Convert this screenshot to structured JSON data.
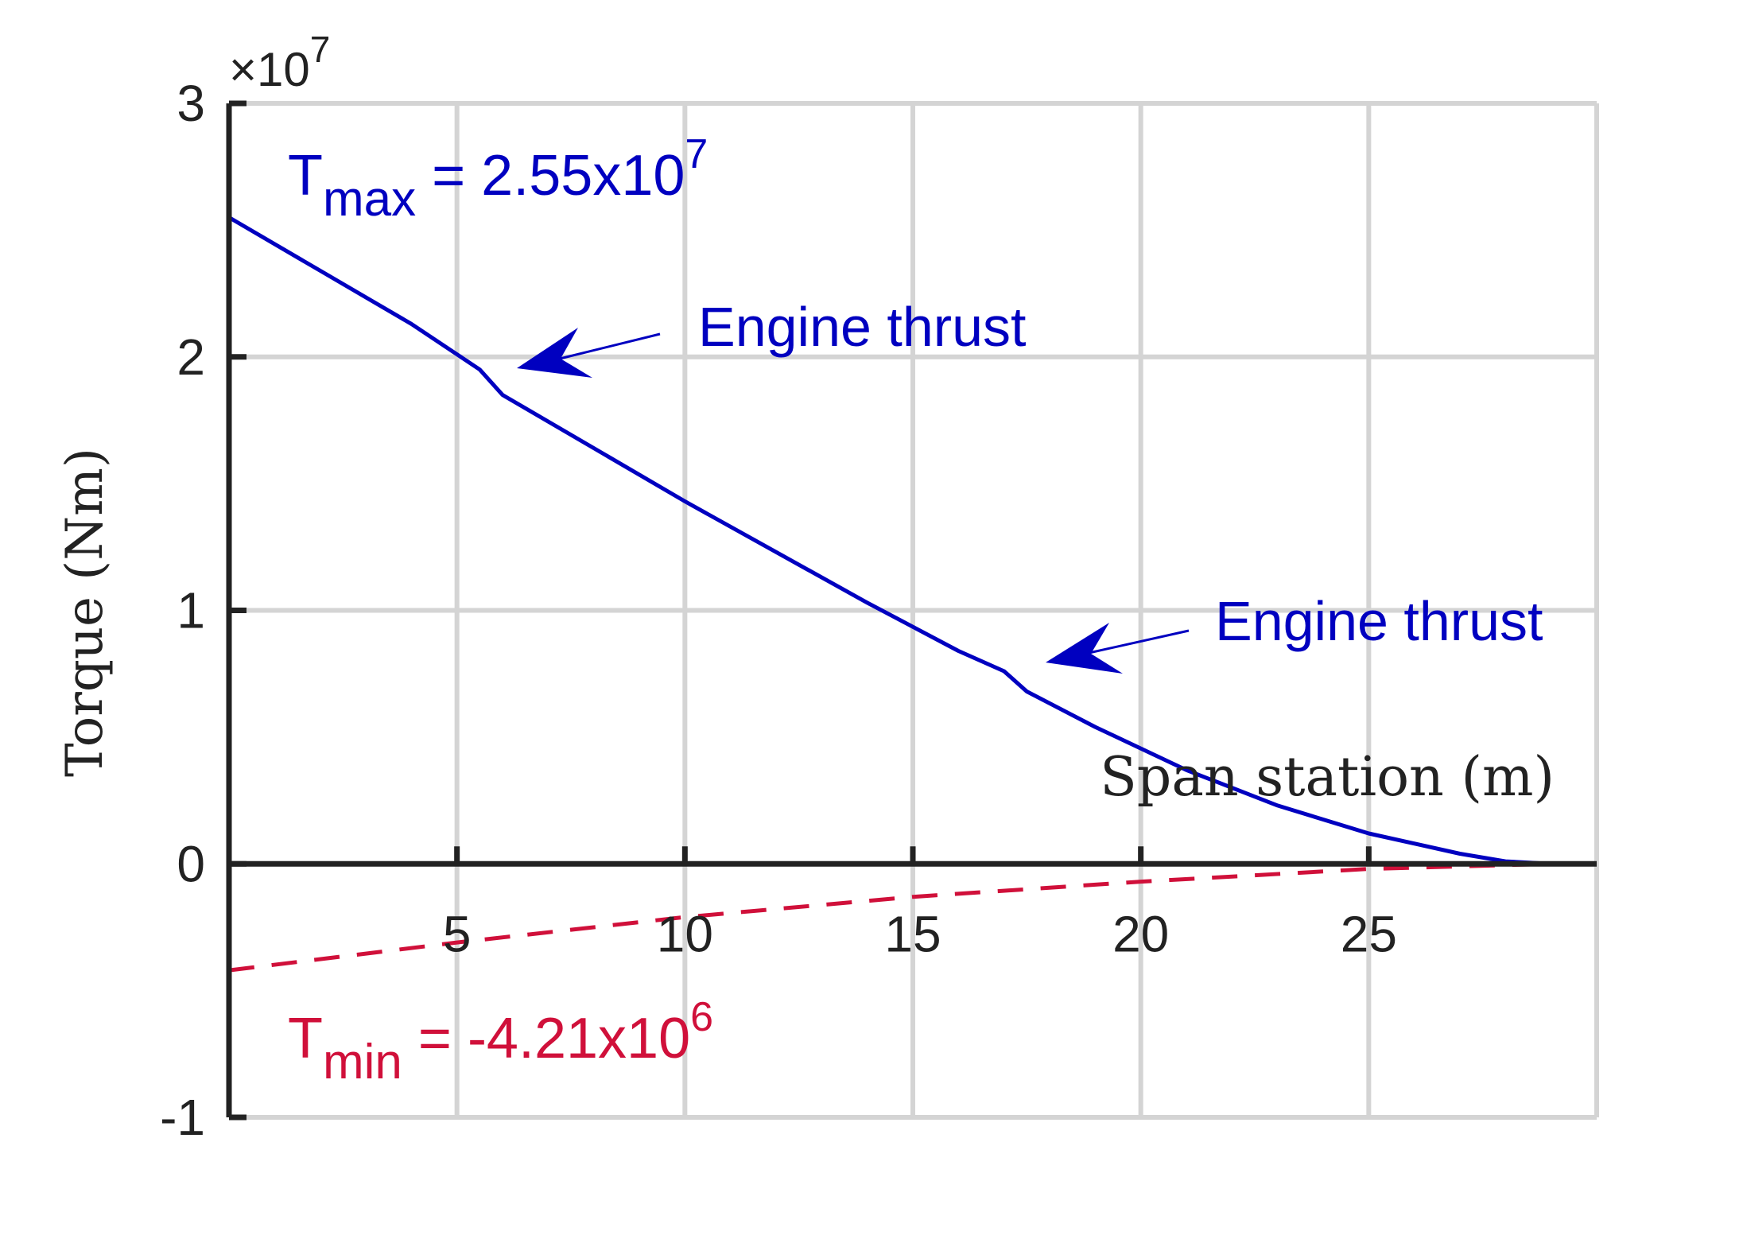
{
  "chart_data": {
    "type": "line",
    "title": "",
    "xlabel": "Span station (m)",
    "ylabel": "Torque (Nm)",
    "y_exponent_label": "×10",
    "y_exponent_power": "7",
    "xlim": [
      0,
      30
    ],
    "ylim": [
      -1,
      3
    ],
    "x_ticks": [
      5,
      10,
      15,
      20,
      25
    ],
    "x_tick_labels": [
      "5",
      "10",
      "15",
      "20",
      "25"
    ],
    "y_ticks": [
      -1,
      0,
      1,
      2,
      3
    ],
    "y_tick_labels": [
      "-1",
      "0",
      "1",
      "2",
      "3"
    ],
    "grid": true,
    "series": [
      {
        "color": "#0000c0",
        "style": "solid",
        "x": [
          0,
          2,
          4,
          5.5,
          6,
          8,
          10,
          12,
          14,
          16,
          17,
          17.5,
          19,
          21,
          23,
          25,
          27,
          28,
          29
        ],
        "y": [
          2.55,
          2.34,
          2.13,
          1.95,
          1.85,
          1.64,
          1.43,
          1.23,
          1.03,
          0.84,
          0.76,
          0.68,
          0.54,
          0.37,
          0.23,
          0.12,
          0.04,
          0.01,
          0
        ]
      },
      {
        "color": "#d0103a",
        "style": "dashed",
        "x": [
          0,
          5,
          10,
          15,
          20,
          25,
          29
        ],
        "y": [
          -0.42,
          -0.31,
          -0.21,
          -0.13,
          -0.07,
          -0.02,
          0
        ]
      }
    ],
    "annotations": {
      "tmax": {
        "main": "T",
        "sub": "max",
        "eq": " = 2.55x10",
        "sup": "7",
        "color": "#0000c0"
      },
      "tmin": {
        "main": "T",
        "sub": "min",
        "eq": " = -4.21x10",
        "sup": "6",
        "color": "#d0103a"
      },
      "engine1": {
        "label": "Engine thrust",
        "color": "#0000c0"
      },
      "engine2": {
        "label": "Engine thrust",
        "color": "#0000c0"
      }
    }
  }
}
